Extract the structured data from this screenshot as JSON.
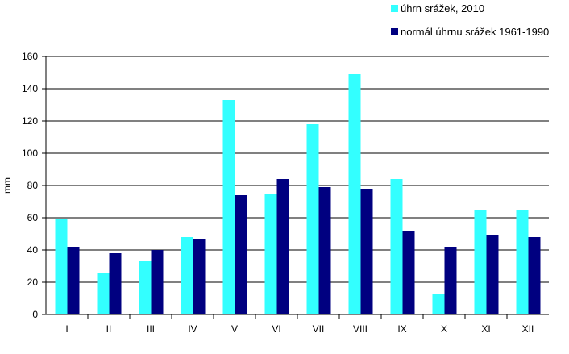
{
  "chart_data": {
    "type": "bar",
    "categories": [
      "I",
      "II",
      "III",
      "IV",
      "V",
      "VI",
      "VII",
      "VIII",
      "IX",
      "X",
      "XI",
      "XII"
    ],
    "series": [
      {
        "name": "úhrn srážek, 2010",
        "color": "#33ffff",
        "values": [
          59,
          26,
          33,
          48,
          133,
          75,
          118,
          149,
          84,
          13,
          65,
          65
        ]
      },
      {
        "name": "normál úhrnu srážek 1961-1990",
        "color": "#000080",
        "values": [
          42,
          38,
          40,
          47,
          74,
          84,
          79,
          78,
          52,
          42,
          49,
          48
        ]
      }
    ],
    "title": "",
    "xlabel": "",
    "ylabel": "mm",
    "ylim": [
      0,
      160
    ],
    "yticks": [
      0,
      20,
      40,
      60,
      80,
      100,
      120,
      140,
      160
    ],
    "grid": true,
    "legend": "top-right"
  }
}
